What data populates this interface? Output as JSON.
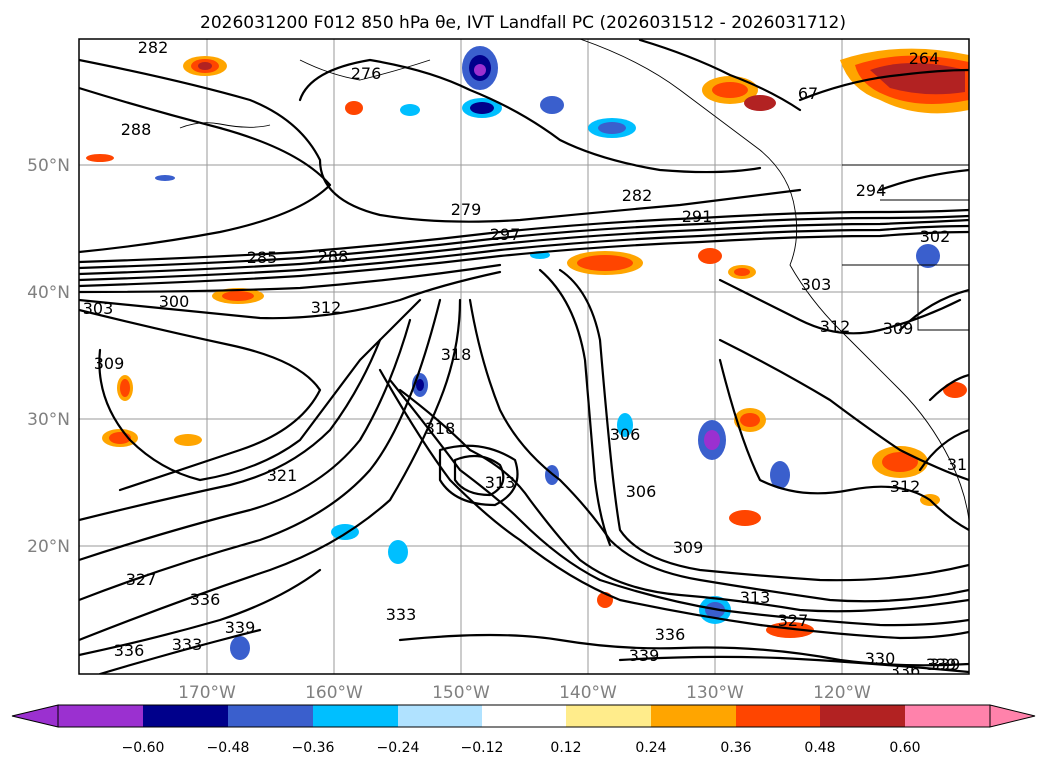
{
  "title": "2026031200 F012 850 hPa θe, IVT Landfall PC (2026031512 - 2026031712)",
  "map": {
    "lat_ticks": [
      "50°N",
      "40°N",
      "30°N",
      "20°N"
    ],
    "lon_ticks": [
      "170°W",
      "160°W",
      "150°W",
      "140°W",
      "130°W",
      "120°W"
    ],
    "contour_labels": [
      "282",
      "276",
      "264",
      "67",
      "288",
      "279",
      "282",
      "291",
      "294",
      "302",
      "285",
      "288",
      "297",
      "303",
      "300",
      "312",
      "303",
      "309",
      "318",
      "312",
      "309",
      "318",
      "306",
      "313",
      "321",
      "306",
      "309",
      "327",
      "336",
      "333",
      "333",
      "339",
      "336",
      "339",
      "336",
      "313",
      "339",
      "330",
      "336",
      "339",
      "312",
      "31",
      "327"
    ]
  },
  "colorbar": {
    "ticks": [
      "−0.60",
      "−0.48",
      "−0.36",
      "−0.24",
      "−0.12",
      "0.12",
      "0.24",
      "0.36",
      "0.48",
      "0.60"
    ],
    "colors": [
      "#9b30d0",
      "#00008b",
      "#3a5fcd",
      "#00bfff",
      "#b0e2ff",
      "#ffffff",
      "#ffec8b",
      "#ffa500",
      "#ff4500",
      "#b22222",
      "#ff82ab"
    ]
  }
}
